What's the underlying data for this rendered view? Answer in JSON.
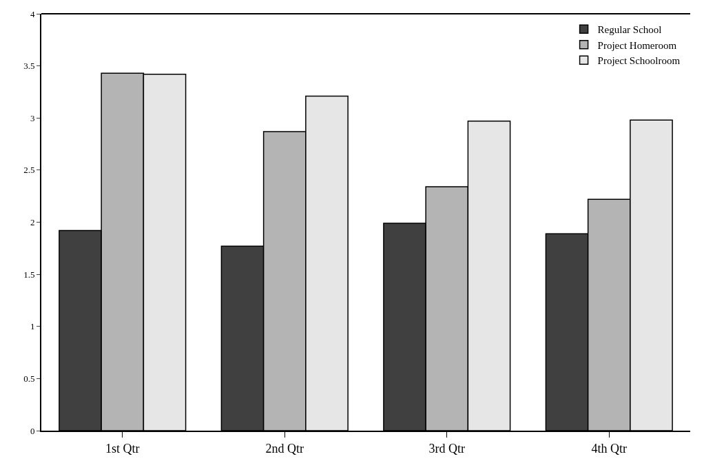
{
  "chart_data": {
    "type": "bar",
    "categories": [
      "1st Qtr",
      "2nd Qtr",
      "3rd Qtr",
      "4th Qtr"
    ],
    "series": [
      {
        "name": "Regular School",
        "color": "#404040",
        "values": [
          1.92,
          1.77,
          1.99,
          1.89
        ]
      },
      {
        "name": "Project Homeroom",
        "color": "#b4b4b4",
        "values": [
          3.43,
          2.87,
          2.34,
          2.22
        ]
      },
      {
        "name": "Project Schoolroom",
        "color": "#e6e6e6",
        "values": [
          3.42,
          3.21,
          2.97,
          2.98
        ]
      }
    ],
    "ylim": [
      0,
      4
    ],
    "yticks": [
      0,
      0.5,
      1,
      1.5,
      2,
      2.5,
      3,
      3.5,
      4
    ],
    "grid": false,
    "legend": "top right"
  }
}
